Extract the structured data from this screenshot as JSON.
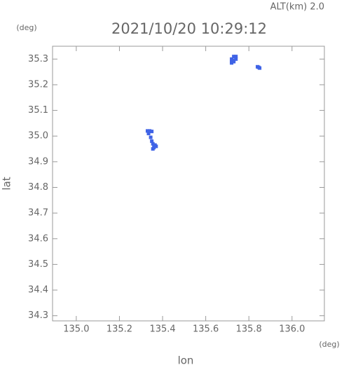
{
  "chart_data": {
    "type": "scatter",
    "title": "2021/10/20 10:29:12",
    "annotation": "ALT(km) 2.0",
    "x_unit": "(deg)",
    "y_unit": "(deg)",
    "x_label": "lon",
    "y_label": "lat",
    "color": "#3f63e6",
    "xlim": [
      134.89,
      136.15
    ],
    "ylim": [
      34.28,
      35.35
    ],
    "xticks": [
      {
        "value": 135.0,
        "label": "135.0"
      },
      135.2,
      135.4,
      135.6,
      135.8,
      {
        "value": 136.0,
        "label": "136.0"
      }
    ],
    "yticks": [
      34.3,
      34.4,
      34.5,
      34.6,
      34.7,
      34.8,
      34.9,
      {
        "value": 35.0,
        "label": "35.0"
      },
      35.1,
      35.2,
      35.3
    ],
    "x": [
      135.72,
      135.73,
      135.74,
      135.72,
      135.73,
      135.74,
      135.72,
      135.73,
      135.84,
      135.85,
      135.845,
      135.33,
      135.34,
      135.35,
      135.335,
      135.345,
      135.35,
      135.355,
      135.36,
      135.37,
      135.365,
      135.355,
      135.36
    ],
    "y": [
      35.29,
      35.29,
      35.3,
      35.3,
      35.31,
      35.31,
      35.285,
      35.295,
      35.27,
      35.265,
      35.268,
      35.02,
      35.02,
      35.018,
      35.01,
      34.995,
      34.98,
      34.97,
      34.965,
      34.96,
      34.965,
      34.95,
      34.955
    ]
  }
}
